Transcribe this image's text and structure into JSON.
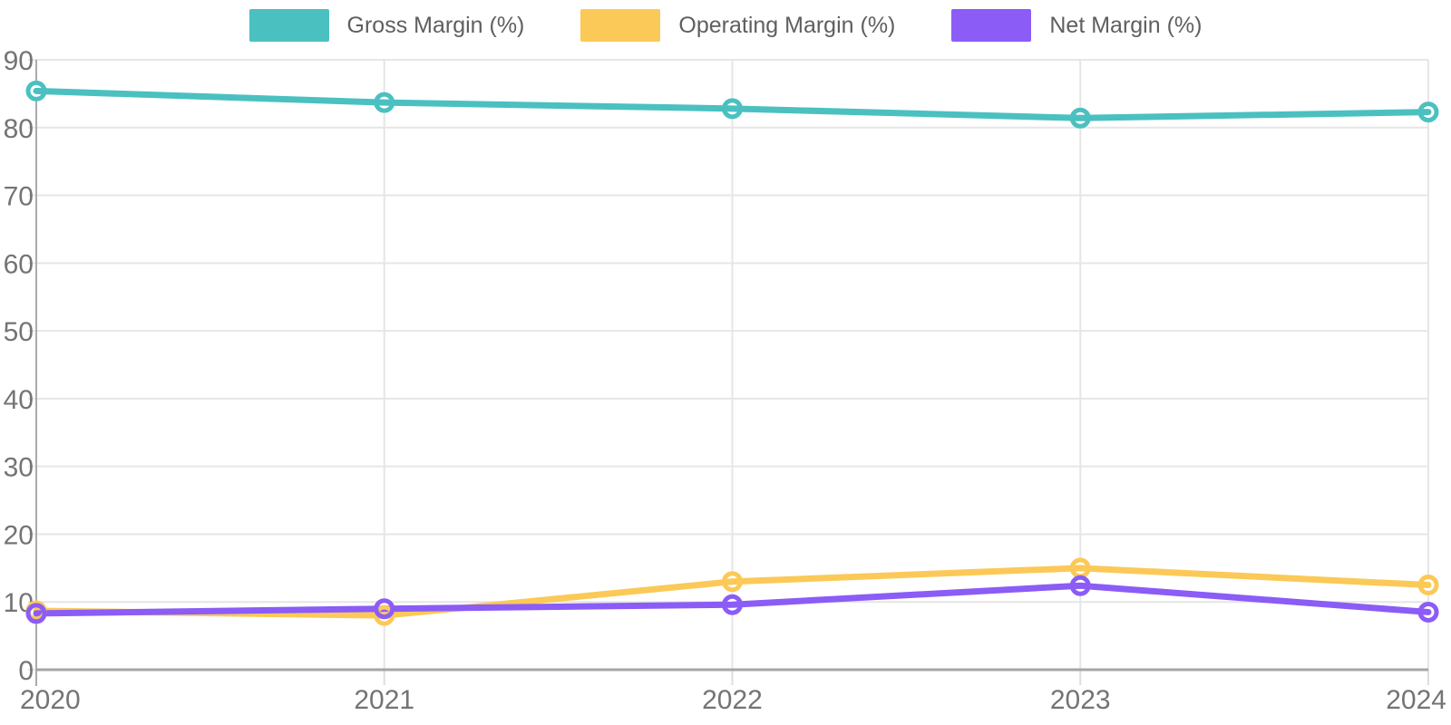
{
  "chart_data": {
    "type": "line",
    "title": "",
    "xlabel": "",
    "ylabel": "",
    "categories": [
      "2020",
      "2021",
      "2022",
      "2023",
      "2024"
    ],
    "series": [
      {
        "name": "Gross Margin (%)",
        "color": "#4bc0c0",
        "values": [
          85.4,
          83.7,
          82.8,
          81.4,
          82.3
        ]
      },
      {
        "name": "Operating Margin (%)",
        "color": "#fbc957",
        "values": [
          8.7,
          8.0,
          13.0,
          15.0,
          12.5
        ]
      },
      {
        "name": "Net Margin (%)",
        "color": "#8b5cf6",
        "values": [
          8.3,
          9.0,
          9.6,
          12.4,
          8.5
        ]
      }
    ],
    "ylim": [
      0,
      90
    ],
    "yticks": [
      0,
      10,
      20,
      30,
      40,
      50,
      60,
      70,
      80,
      90
    ],
    "grid": true,
    "legend_position": "top",
    "point_style": "open-circle-on-line",
    "colors": {
      "grid_line": "#e6e6e6",
      "x_axis_line": "#a6a6a6",
      "y_axis_line": "#ababab",
      "tick_mark": "#dedede",
      "tick_label": "#747474",
      "legend_text": "#5f5f5f",
      "background": "#ffffff",
      "point_fill": "#ffffff"
    }
  }
}
